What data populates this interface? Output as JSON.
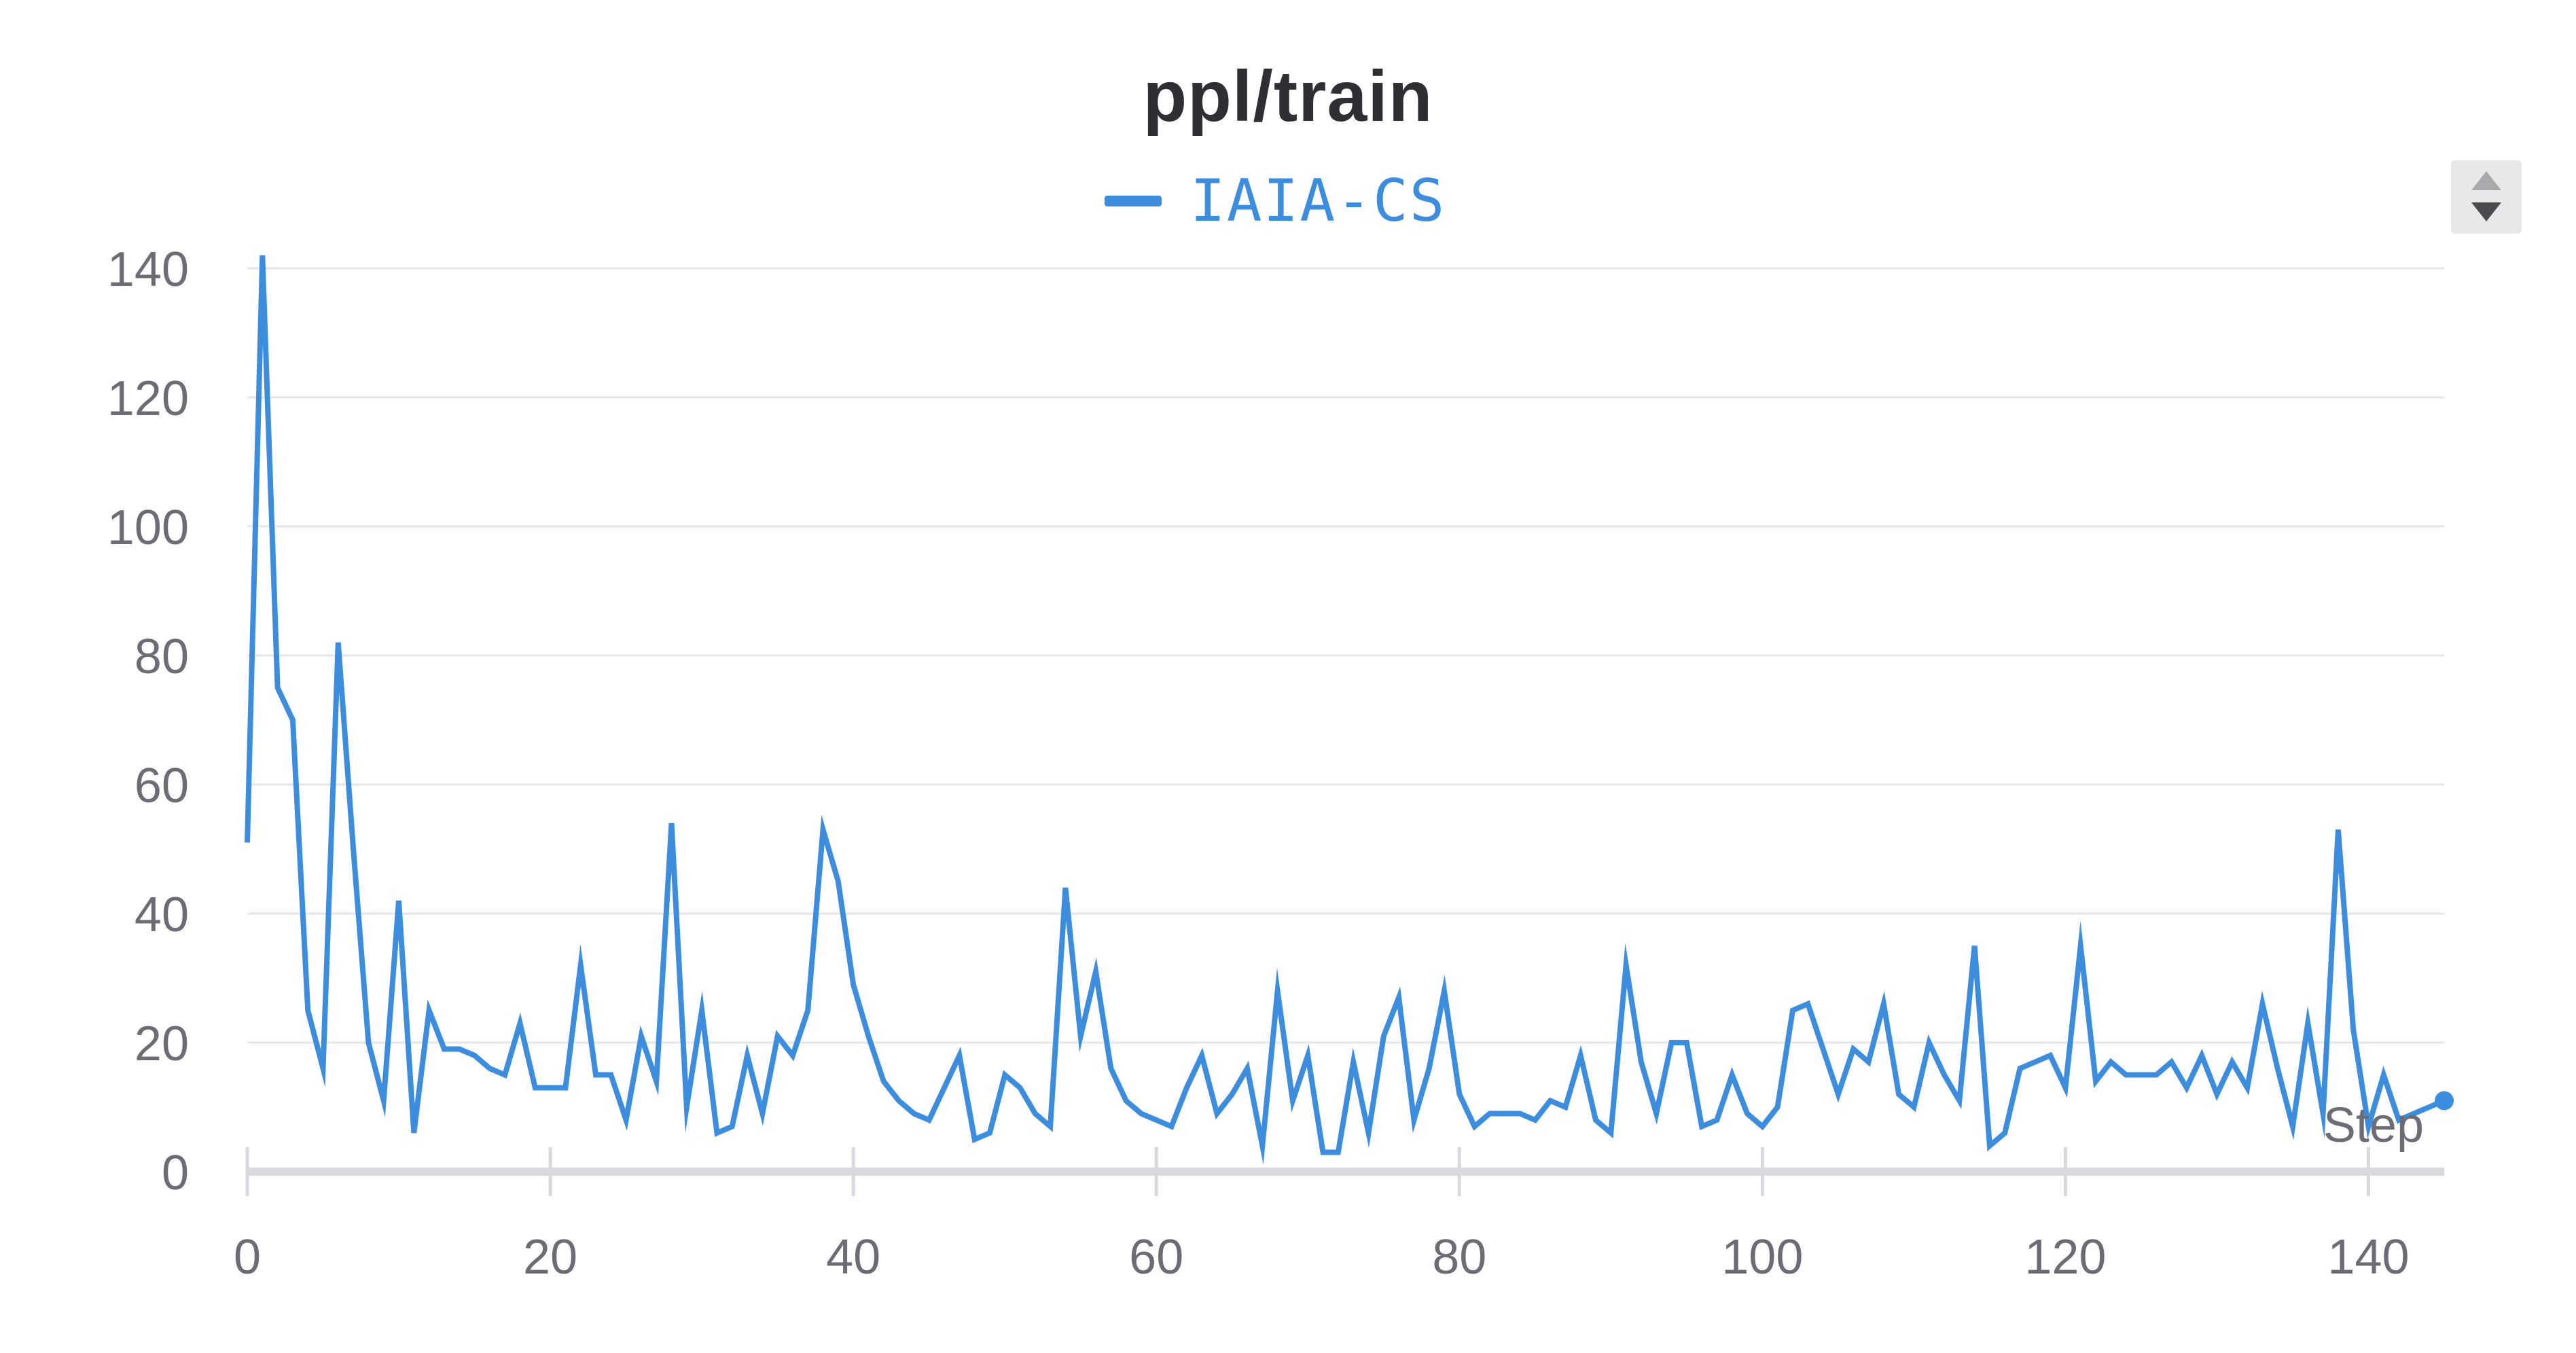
{
  "chart_data": {
    "type": "line",
    "title": "ppl/train",
    "xlabel": "Step",
    "ylabel": "",
    "xlim": [
      0,
      145
    ],
    "ylim": [
      0,
      140
    ],
    "x_ticks": [
      "0",
      "20",
      "40",
      "60",
      "80",
      "100",
      "120",
      "140"
    ],
    "y_ticks": [
      "0",
      "20",
      "40",
      "60",
      "80",
      "100",
      "120",
      "140"
    ],
    "grid": true,
    "legend_position": "top-center",
    "series": [
      {
        "name": "IAIA-CS",
        "color": "#3d8dde",
        "x": [
          0,
          1,
          2,
          3,
          4,
          5,
          6,
          7,
          8,
          9,
          10,
          11,
          12,
          13,
          14,
          15,
          16,
          17,
          18,
          19,
          20,
          21,
          22,
          23,
          24,
          25,
          26,
          27,
          28,
          29,
          30,
          31,
          32,
          33,
          34,
          35,
          36,
          37,
          38,
          39,
          40,
          41,
          42,
          43,
          44,
          45,
          46,
          47,
          48,
          49,
          50,
          51,
          52,
          53,
          54,
          55,
          56,
          57,
          58,
          59,
          60,
          61,
          62,
          63,
          64,
          65,
          66,
          67,
          68,
          69,
          70,
          71,
          72,
          73,
          74,
          75,
          76,
          77,
          78,
          79,
          80,
          81,
          82,
          83,
          84,
          85,
          86,
          87,
          88,
          89,
          90,
          91,
          92,
          93,
          94,
          95,
          96,
          97,
          98,
          99,
          100,
          101,
          102,
          103,
          104,
          105,
          106,
          107,
          108,
          109,
          110,
          111,
          112,
          113,
          114,
          115,
          116,
          117,
          118,
          119,
          120,
          121,
          122,
          123,
          124,
          125,
          126,
          127,
          128,
          129,
          130,
          131,
          132,
          133,
          134,
          135,
          136,
          137,
          138,
          139,
          140,
          141,
          142,
          143,
          144,
          145
        ],
        "y": [
          51,
          142,
          75,
          70,
          25,
          16,
          82,
          50,
          20,
          11,
          42,
          6,
          25,
          19,
          19,
          18,
          16,
          15,
          23,
          13,
          13,
          13,
          32,
          15,
          15,
          8,
          21,
          14,
          54,
          10,
          25,
          6,
          7,
          18,
          9,
          21,
          18,
          25,
          53,
          45,
          29,
          21,
          14,
          11,
          9,
          8,
          13,
          18,
          5,
          6,
          15,
          13,
          9,
          7,
          44,
          21,
          31,
          16,
          11,
          9,
          8,
          7,
          13,
          18,
          9,
          12,
          16,
          4,
          28,
          11,
          18,
          3,
          3,
          17,
          6,
          21,
          27,
          8,
          16,
          28,
          12,
          7,
          9,
          9,
          9,
          8,
          11,
          10,
          18,
          8,
          6,
          32,
          17,
          9,
          20,
          20,
          7,
          8,
          15,
          9,
          7,
          10,
          25,
          26,
          19,
          12,
          19,
          17,
          26,
          12,
          10,
          20,
          15,
          11,
          35,
          4,
          6,
          16,
          17,
          18,
          13,
          35,
          14,
          17,
          15,
          15,
          15,
          17,
          13,
          18,
          12,
          17,
          13,
          26,
          16,
          7,
          23,
          9,
          53,
          22,
          7,
          15,
          8,
          9,
          10,
          11
        ]
      }
    ]
  }
}
